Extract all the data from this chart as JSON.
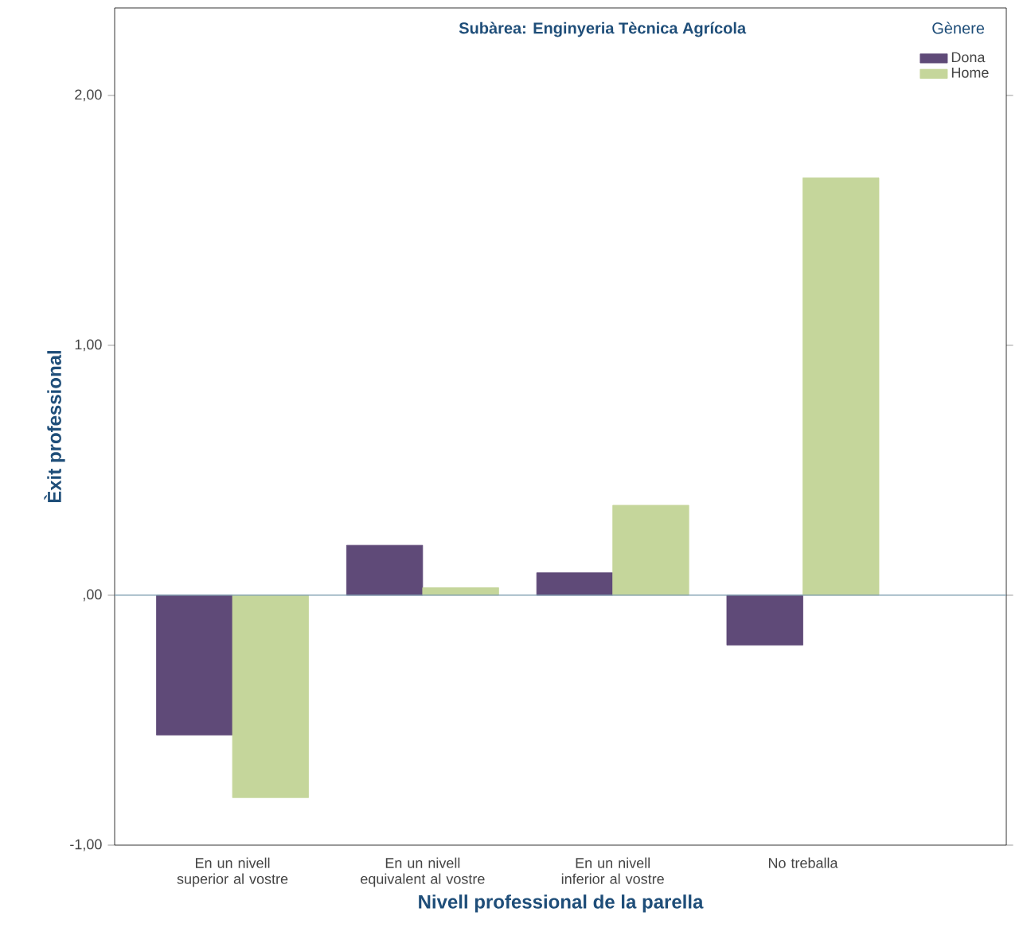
{
  "chart_data": {
    "type": "bar",
    "title": "Subàrea: Enginyeria Tècnica Agrícola",
    "xlabel": "Nivell professional de la parella",
    "ylabel": "Èxit professional",
    "legend_title": "Gènere",
    "categories": [
      "En un nivell superior al vostre",
      "En un nivell equivalent al vostre",
      "En un nivell inferior al vostre",
      "No treballa"
    ],
    "series": [
      {
        "name": "Dona",
        "color": "#5f4a78",
        "values": [
          -0.56,
          0.2,
          0.09,
          -0.2
        ]
      },
      {
        "name": "Home",
        "color": "#c5d69b",
        "values": [
          -0.81,
          0.03,
          0.36,
          1.67
        ]
      }
    ],
    "ylim": [
      -1,
      2.35
    ],
    "yticks": [
      {
        "value": -1,
        "label": "-1,00"
      },
      {
        "value": 0,
        "label": ",00"
      },
      {
        "value": 1,
        "label": "1,00"
      },
      {
        "value": 2,
        "label": "2,00"
      }
    ],
    "ref_lines": [
      {
        "axis": "y",
        "value": 0,
        "color": "#7f9fb0"
      }
    ],
    "legend": "top right"
  }
}
